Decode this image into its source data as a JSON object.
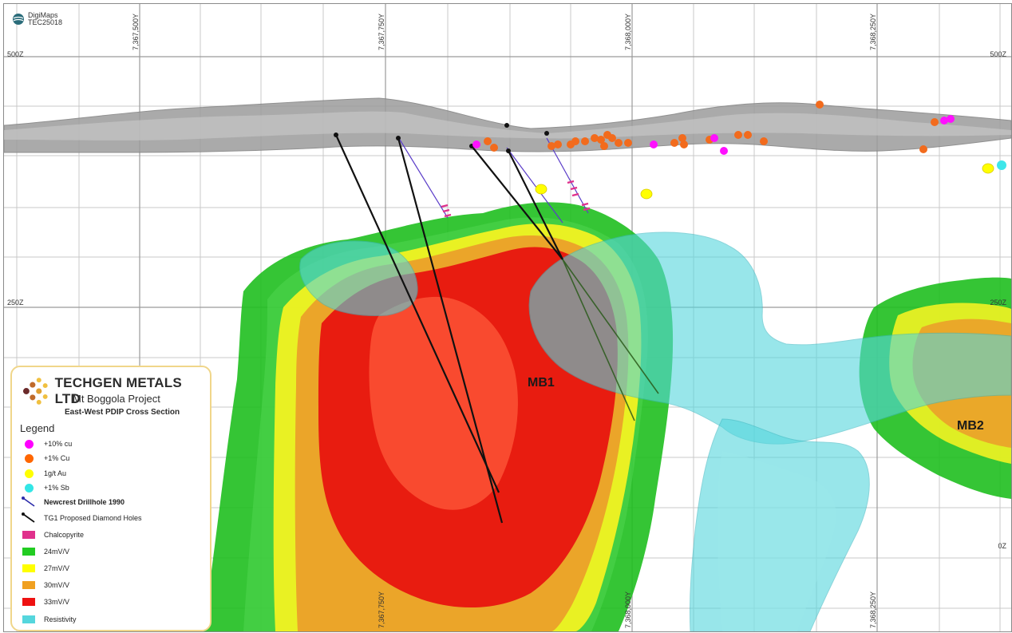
{
  "brand": {
    "name_line1": "DigiMaps",
    "name_line2": "TEC25018"
  },
  "northings_top": [
    "7,367,500Y",
    "7,367,750Y",
    "7,368,000Y",
    "7,368,250Y"
  ],
  "northings_bottom": [
    "7,367,750Y",
    "7,368,000Y",
    "7,368,250Y"
  ],
  "elevations": {
    "top_left": "500Z",
    "top_right": "500Z",
    "mid_left": "250Z",
    "mid_right": "250Z",
    "bottom_right": "0Z"
  },
  "ore_bodies": {
    "mb1": "MB1",
    "mb2": "MB2"
  },
  "legend": {
    "company": "TECHGEN METALS LTD",
    "project": "Mt Boggola Project",
    "section": "East-West PDIP Cross Section",
    "title": "Legend",
    "items": [
      {
        "label": "+10% cu",
        "icon": "magenta-dot",
        "color": "#ff00ff"
      },
      {
        "label": "+1% Cu",
        "icon": "orange-dot",
        "color": "#ff6600"
      },
      {
        "label": "1g/t Au",
        "icon": "yellow-dot",
        "color": "#ffff00"
      },
      {
        "label": "+1% Sb",
        "icon": "cyan-dot",
        "color": "#33e6e6"
      },
      {
        "label": "Newcrest Drillhole 1990",
        "icon": "blue-drillhole",
        "color": "#2b2baa"
      },
      {
        "label": "TG1 Proposed Diamond Holes",
        "icon": "black-drillhole",
        "color": "#111111"
      },
      {
        "label": "Chalcopyrite",
        "icon": "chalcopyrite-swatch",
        "color": "#e0318c"
      },
      {
        "label": "24mV/V",
        "icon": "green-swatch",
        "color": "#22cc22"
      },
      {
        "label": "27mV/V",
        "icon": "yellow-swatch",
        "color": "#ffff00"
      },
      {
        "label": "30mV/V",
        "icon": "orange-swatch",
        "color": "#f0a020"
      },
      {
        "label": "33mV/V",
        "icon": "red-swatch",
        "color": "#ee1111"
      },
      {
        "label": "Resistivity",
        "icon": "resistivity-swatch",
        "color": "#55d6dd"
      }
    ]
  }
}
